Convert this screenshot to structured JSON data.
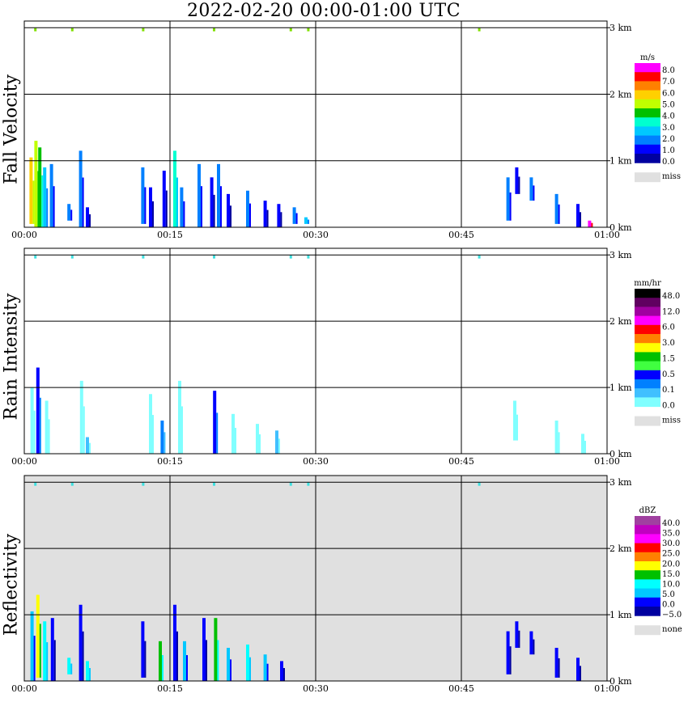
{
  "title": "2022-02-20   00:00-01:00 UTC",
  "colors": {
    "grid": "#000000",
    "missing": "#e0e0e0",
    "background": "#ffffff"
  },
  "chart_data": [
    {
      "type": "heatmap",
      "name": "Fall Velocity",
      "ylabel": "Fall Velocity",
      "x_ticks": [
        "00:00",
        "00:15",
        "00:30",
        "00:45",
        "01:00"
      ],
      "y_ticks": [
        "0 km",
        "1 km",
        "2 km",
        "3 km"
      ],
      "xlim_minutes": [
        0,
        60
      ],
      "ylim_km": [
        0,
        3.1
      ],
      "grid": true,
      "background": "white",
      "colorbar": {
        "unit": "m/s",
        "labels": [
          "8.0",
          "7.0",
          "6.0",
          "5.0",
          "4.0",
          "3.0",
          "2.0",
          "1.0",
          "0.0"
        ],
        "colors": [
          "#ff00ff",
          "#ff0000",
          "#ff8000",
          "#ffd000",
          "#c0ff00",
          "#00c000",
          "#00ffd0",
          "#00c8ff",
          "#0080ff",
          "#0000ff",
          "#0000a0"
        ],
        "missing_label": "miss"
      },
      "echoes": [
        {
          "t": 0.7,
          "h0": 0.05,
          "h1": 1.05,
          "c": 3
        },
        {
          "t": 1.2,
          "h0": 0.0,
          "h1": 1.3,
          "c": 4
        },
        {
          "t": 1.6,
          "h0": 0.0,
          "h1": 1.2,
          "c": 5
        },
        {
          "t": 2.1,
          "h0": 0.0,
          "h1": 0.9,
          "c": 7
        },
        {
          "t": 2.8,
          "h0": 0.0,
          "h1": 0.95,
          "c": 8
        },
        {
          "t": 4.6,
          "h0": 0.1,
          "h1": 0.35,
          "c": 8
        },
        {
          "t": 5.8,
          "h0": 0.0,
          "h1": 1.15,
          "c": 8
        },
        {
          "t": 6.5,
          "h0": 0.0,
          "h1": 0.3,
          "c": 9
        },
        {
          "t": 12.2,
          "h0": 0.05,
          "h1": 0.9,
          "c": 8
        },
        {
          "t": 13.0,
          "h0": 0.0,
          "h1": 0.6,
          "c": 9
        },
        {
          "t": 14.4,
          "h0": 0.0,
          "h1": 0.85,
          "c": 9
        },
        {
          "t": 15.5,
          "h0": 0.0,
          "h1": 1.15,
          "c": 6
        },
        {
          "t": 16.2,
          "h0": 0.0,
          "h1": 0.6,
          "c": 8
        },
        {
          "t": 18.0,
          "h0": 0.0,
          "h1": 0.95,
          "c": 8
        },
        {
          "t": 19.3,
          "h0": 0.0,
          "h1": 0.75,
          "c": 9
        },
        {
          "t": 20.0,
          "h0": 0.0,
          "h1": 0.95,
          "c": 8
        },
        {
          "t": 21.0,
          "h0": 0.0,
          "h1": 0.5,
          "c": 9
        },
        {
          "t": 23.0,
          "h0": 0.0,
          "h1": 0.55,
          "c": 8
        },
        {
          "t": 24.8,
          "h0": 0.0,
          "h1": 0.4,
          "c": 9
        },
        {
          "t": 26.2,
          "h0": 0.0,
          "h1": 0.35,
          "c": 9
        },
        {
          "t": 27.8,
          "h0": 0.05,
          "h1": 0.3,
          "c": 8
        },
        {
          "t": 29.0,
          "h0": 0.05,
          "h1": 0.15,
          "c": 7
        },
        {
          "t": 49.8,
          "h0": 0.1,
          "h1": 0.75,
          "c": 8
        },
        {
          "t": 50.7,
          "h0": 0.5,
          "h1": 0.9,
          "c": 9
        },
        {
          "t": 52.2,
          "h0": 0.4,
          "h1": 0.75,
          "c": 8
        },
        {
          "t": 54.8,
          "h0": 0.05,
          "h1": 0.5,
          "c": 8
        },
        {
          "t": 57.0,
          "h0": 0.0,
          "h1": 0.35,
          "c": 9
        },
        {
          "t": 58.2,
          "h0": 0.0,
          "h1": 0.1,
          "c": 0
        }
      ],
      "top_specks": [
        1.1,
        4.9,
        12.2,
        19.5,
        27.4,
        29.2,
        46.8
      ]
    },
    {
      "type": "heatmap",
      "name": "Rain Intensity",
      "ylabel": "Rain Intensity",
      "x_ticks": [
        "00:00",
        "00:15",
        "00:30",
        "00:45",
        "01:00"
      ],
      "y_ticks": [
        "0 km",
        "1 km",
        "2 km",
        "3 km"
      ],
      "xlim_minutes": [
        0,
        60
      ],
      "ylim_km": [
        0,
        3.1
      ],
      "grid": true,
      "background": "white",
      "colorbar": {
        "unit": "mm/hr",
        "labels": [
          "48.0",
          "12.0",
          "6.0",
          "3.0",
          "1.5",
          "0.5",
          "0.1",
          "0.0"
        ],
        "colors": [
          "#000000",
          "#600060",
          "#a000a0",
          "#ff00ff",
          "#ff0000",
          "#ff8000",
          "#ffff00",
          "#00c000",
          "#40ff40",
          "#0000ff",
          "#0080ff",
          "#40c0ff",
          "#80ffff"
        ],
        "missing_label": "miss"
      },
      "echoes": [
        {
          "t": 0.8,
          "h0": 0.0,
          "h1": 1.0,
          "c": 12
        },
        {
          "t": 1.4,
          "h0": 0.0,
          "h1": 1.3,
          "c": 9
        },
        {
          "t": 2.3,
          "h0": 0.0,
          "h1": 0.8,
          "c": 12
        },
        {
          "t": 5.9,
          "h0": 0.0,
          "h1": 1.1,
          "c": 12
        },
        {
          "t": 6.5,
          "h0": 0.0,
          "h1": 0.25,
          "c": 11
        },
        {
          "t": 13.0,
          "h0": 0.0,
          "h1": 0.9,
          "c": 12
        },
        {
          "t": 14.2,
          "h0": 0.0,
          "h1": 0.5,
          "c": 10
        },
        {
          "t": 16.0,
          "h0": 0.0,
          "h1": 1.1,
          "c": 12
        },
        {
          "t": 19.6,
          "h0": 0.0,
          "h1": 0.95,
          "c": 9
        },
        {
          "t": 21.5,
          "h0": 0.0,
          "h1": 0.6,
          "c": 12
        },
        {
          "t": 24.0,
          "h0": 0.0,
          "h1": 0.45,
          "c": 12
        },
        {
          "t": 26.0,
          "h0": 0.0,
          "h1": 0.35,
          "c": 11
        },
        {
          "t": 50.5,
          "h0": 0.2,
          "h1": 0.8,
          "c": 12
        },
        {
          "t": 54.8,
          "h0": 0.0,
          "h1": 0.5,
          "c": 12
        },
        {
          "t": 57.5,
          "h0": 0.0,
          "h1": 0.3,
          "c": 12
        }
      ],
      "top_specks": [
        1.1,
        4.9,
        12.2,
        19.5,
        27.4,
        29.2,
        46.8
      ]
    },
    {
      "type": "heatmap",
      "name": "Reflectivity",
      "ylabel": "Reflectivity",
      "x_ticks": [
        "00:00",
        "00:15",
        "00:30",
        "00:45",
        "01:00"
      ],
      "y_ticks": [
        "0 km",
        "1 km",
        "2 km",
        "3 km"
      ],
      "xlim_minutes": [
        0,
        60
      ],
      "ylim_km": [
        0,
        3.1
      ],
      "grid": true,
      "background": "gray",
      "colorbar": {
        "unit": "dBZ",
        "labels": [
          "40.0",
          "35.0",
          "30.0",
          "25.0",
          "20.0",
          "15.0",
          "10.0",
          "5.0",
          "0.0",
          "−5.0"
        ],
        "colors": [
          "#a040a0",
          "#c000c0",
          "#ff00ff",
          "#ff0000",
          "#ff8000",
          "#ffff00",
          "#00c000",
          "#00ffff",
          "#00c8ff",
          "#0000ff",
          "#0000a0"
        ],
        "missing_label": "none"
      },
      "echoes": [
        {
          "t": 0.8,
          "h0": 0.0,
          "h1": 1.05,
          "c": 8
        },
        {
          "t": 1.4,
          "h0": 0.05,
          "h1": 1.3,
          "c": 5
        },
        {
          "t": 2.1,
          "h0": 0.0,
          "h1": 0.9,
          "c": 7
        },
        {
          "t": 2.9,
          "h0": 0.0,
          "h1": 0.95,
          "c": 9
        },
        {
          "t": 4.6,
          "h0": 0.1,
          "h1": 0.35,
          "c": 7
        },
        {
          "t": 5.8,
          "h0": 0.0,
          "h1": 1.15,
          "c": 9
        },
        {
          "t": 6.5,
          "h0": 0.0,
          "h1": 0.3,
          "c": 7
        },
        {
          "t": 12.2,
          "h0": 0.05,
          "h1": 0.9,
          "c": 9
        },
        {
          "t": 14.0,
          "h0": 0.0,
          "h1": 0.6,
          "c": 6
        },
        {
          "t": 15.5,
          "h0": 0.0,
          "h1": 1.15,
          "c": 9
        },
        {
          "t": 16.5,
          "h0": 0.0,
          "h1": 0.6,
          "c": 8
        },
        {
          "t": 18.5,
          "h0": 0.0,
          "h1": 0.95,
          "c": 9
        },
        {
          "t": 19.7,
          "h0": 0.0,
          "h1": 0.95,
          "c": 6
        },
        {
          "t": 21.0,
          "h0": 0.0,
          "h1": 0.5,
          "c": 8
        },
        {
          "t": 23.0,
          "h0": 0.0,
          "h1": 0.55,
          "c": 7
        },
        {
          "t": 24.8,
          "h0": 0.0,
          "h1": 0.4,
          "c": 8
        },
        {
          "t": 26.5,
          "h0": 0.0,
          "h1": 0.3,
          "c": 9
        },
        {
          "t": 49.8,
          "h0": 0.1,
          "h1": 0.75,
          "c": 9
        },
        {
          "t": 50.7,
          "h0": 0.5,
          "h1": 0.9,
          "c": 9
        },
        {
          "t": 52.2,
          "h0": 0.4,
          "h1": 0.75,
          "c": 9
        },
        {
          "t": 54.8,
          "h0": 0.05,
          "h1": 0.5,
          "c": 9
        },
        {
          "t": 57.0,
          "h0": 0.0,
          "h1": 0.35,
          "c": 9
        }
      ],
      "top_specks": [
        1.1,
        4.9,
        12.2,
        19.5,
        27.4,
        29.2,
        46.8
      ]
    }
  ]
}
